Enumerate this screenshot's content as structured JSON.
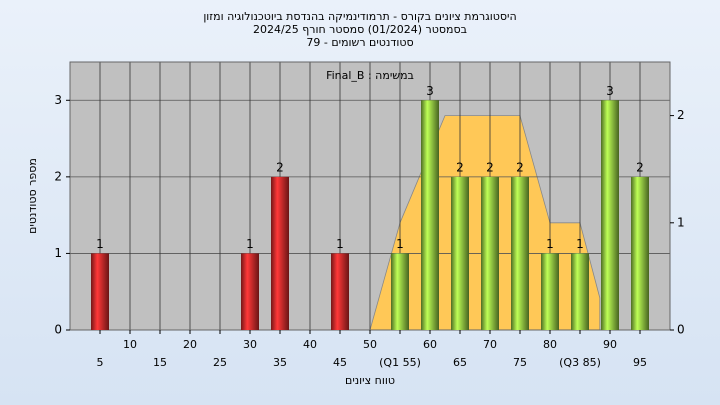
{
  "chart_data": {
    "type": "bar",
    "title": "היסטוגרמת ציונים בקורס - תרמודינמיקה בהנדסת ביוטכנולוגיה ומזון",
    "subtitle": "בסמסטר  (01/2024)  סמסטר חורף 2024/25",
    "subtitle2": "סטודנטים רשומים - 79",
    "annotation": "במשימה : Final_B",
    "ylabel": "מספר סטודנטים",
    "xlabel": "טווח ציונים",
    "x": [
      5,
      10,
      15,
      20,
      25,
      30,
      35,
      40,
      45,
      50,
      55,
      60,
      65,
      70,
      75,
      80,
      85,
      90,
      95
    ],
    "values": [
      1,
      0,
      0,
      0,
      0,
      1,
      2,
      0,
      1,
      0,
      1,
      3,
      2,
      2,
      2,
      1,
      1,
      3,
      2
    ],
    "colors": [
      "#d42a2a",
      "#d42a2a",
      "#d42a2a",
      "#d42a2a",
      "#d42a2a",
      "#d42a2a",
      "#d42a2a",
      "#d42a2a",
      "#d42a2a",
      "#8dc63f",
      "#8dc63f",
      "#8dc63f",
      "#8dc63f",
      "#8dc63f",
      "#8dc63f",
      "#8dc63f",
      "#8dc63f",
      "#8dc63f",
      "#8dc63f"
    ],
    "area": {
      "color": "#ffc857",
      "x": [
        50,
        55,
        62.5,
        75,
        80,
        85,
        88.3
      ],
      "values": [
        0,
        1,
        2,
        2,
        1,
        1,
        0.3
      ],
      "axis": "y2"
    },
    "xlim": [
      0,
      100
    ],
    "xticks": [
      5,
      10,
      15,
      20,
      25,
      30,
      35,
      40,
      45,
      50,
      {
        "value": 55,
        "label": "(Q1 55)"
      },
      60,
      65,
      70,
      75,
      80,
      {
        "value": 85,
        "label": "(Q3 85)"
      },
      90,
      95
    ],
    "ylim": [
      0,
      3.5
    ],
    "yticks": [
      0,
      1,
      2,
      3
    ],
    "y2lim": [
      0,
      2.5
    ],
    "y2ticks": [
      0,
      1,
      2
    ],
    "grid": true
  }
}
